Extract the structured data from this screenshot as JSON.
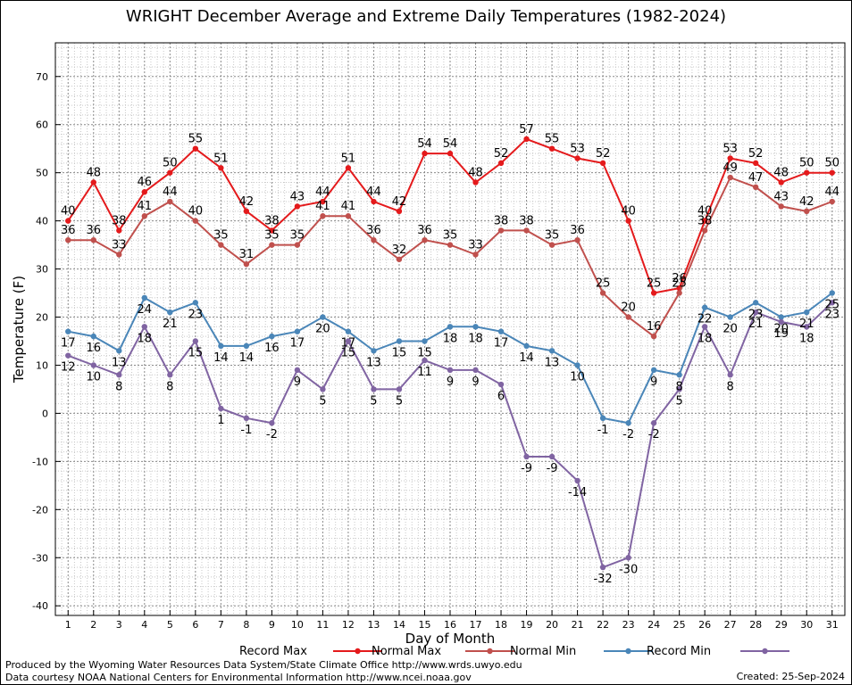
{
  "page": {
    "title": "WRIGHT December Average and Extreme Daily Temperatures (1982-2024)",
    "credit_line_1": "Produced by the Wyoming Water Resources Data System/State Climate Office http://www.wrds.uwyo.edu",
    "credit_line_2": "Data courtesy NOAA National Centers for Environmental Information http://www.ncei.noaa.gov",
    "created": "Created:  25-Sep-2024"
  },
  "chart_data": {
    "type": "line",
    "title": "WRIGHT December Average and Extreme Daily Temperatures (1982-2024)",
    "xlabel": "Day of Month",
    "ylabel": "Temperature (F)",
    "xlim": [
      0.5,
      31.5
    ],
    "ylim": [
      -42,
      77
    ],
    "yticks": [
      -40,
      -30,
      -20,
      -10,
      0,
      10,
      20,
      30,
      40,
      50,
      60,
      70
    ],
    "x": [
      1,
      2,
      3,
      4,
      5,
      6,
      7,
      8,
      9,
      10,
      11,
      12,
      13,
      14,
      15,
      16,
      17,
      18,
      19,
      20,
      21,
      22,
      23,
      24,
      25,
      26,
      27,
      28,
      29,
      30,
      31
    ],
    "grid": true,
    "legend_position": "bottom",
    "series": [
      {
        "name": "Record Max",
        "color": "#e41a1c",
        "values": [
          40,
          48,
          38,
          46,
          50,
          55,
          51,
          42,
          38,
          43,
          44,
          51,
          44,
          42,
          54,
          54,
          48,
          52,
          57,
          55,
          53,
          52,
          40,
          25,
          26,
          40,
          53,
          52,
          48,
          50,
          50
        ]
      },
      {
        "name": "Normal Max",
        "color": "#c0504d",
        "values": [
          36,
          36,
          33,
          41,
          44,
          40,
          35,
          31,
          35,
          35,
          41,
          41,
          36,
          32,
          36,
          35,
          33,
          38,
          38,
          35,
          36,
          25,
          20,
          16,
          25,
          38,
          49,
          47,
          43,
          42,
          44
        ]
      },
      {
        "name": "Normal Min",
        "color": "#4a86b8",
        "values": [
          17,
          16,
          13,
          24,
          21,
          23,
          14,
          14,
          16,
          17,
          20,
          17,
          13,
          15,
          15,
          18,
          18,
          17,
          14,
          13,
          10,
          -1,
          -2,
          9,
          8,
          22,
          20,
          23,
          20,
          21,
          25
        ]
      },
      {
        "name": "Record Min",
        "color": "#8064a2",
        "values": [
          12,
          10,
          8,
          18,
          8,
          15,
          1,
          -1,
          -2,
          9,
          5,
          15,
          5,
          5,
          11,
          9,
          9,
          6,
          -9,
          -9,
          -14,
          -32,
          -30,
          -2,
          5,
          18,
          8,
          21,
          19,
          18,
          23
        ]
      }
    ]
  }
}
